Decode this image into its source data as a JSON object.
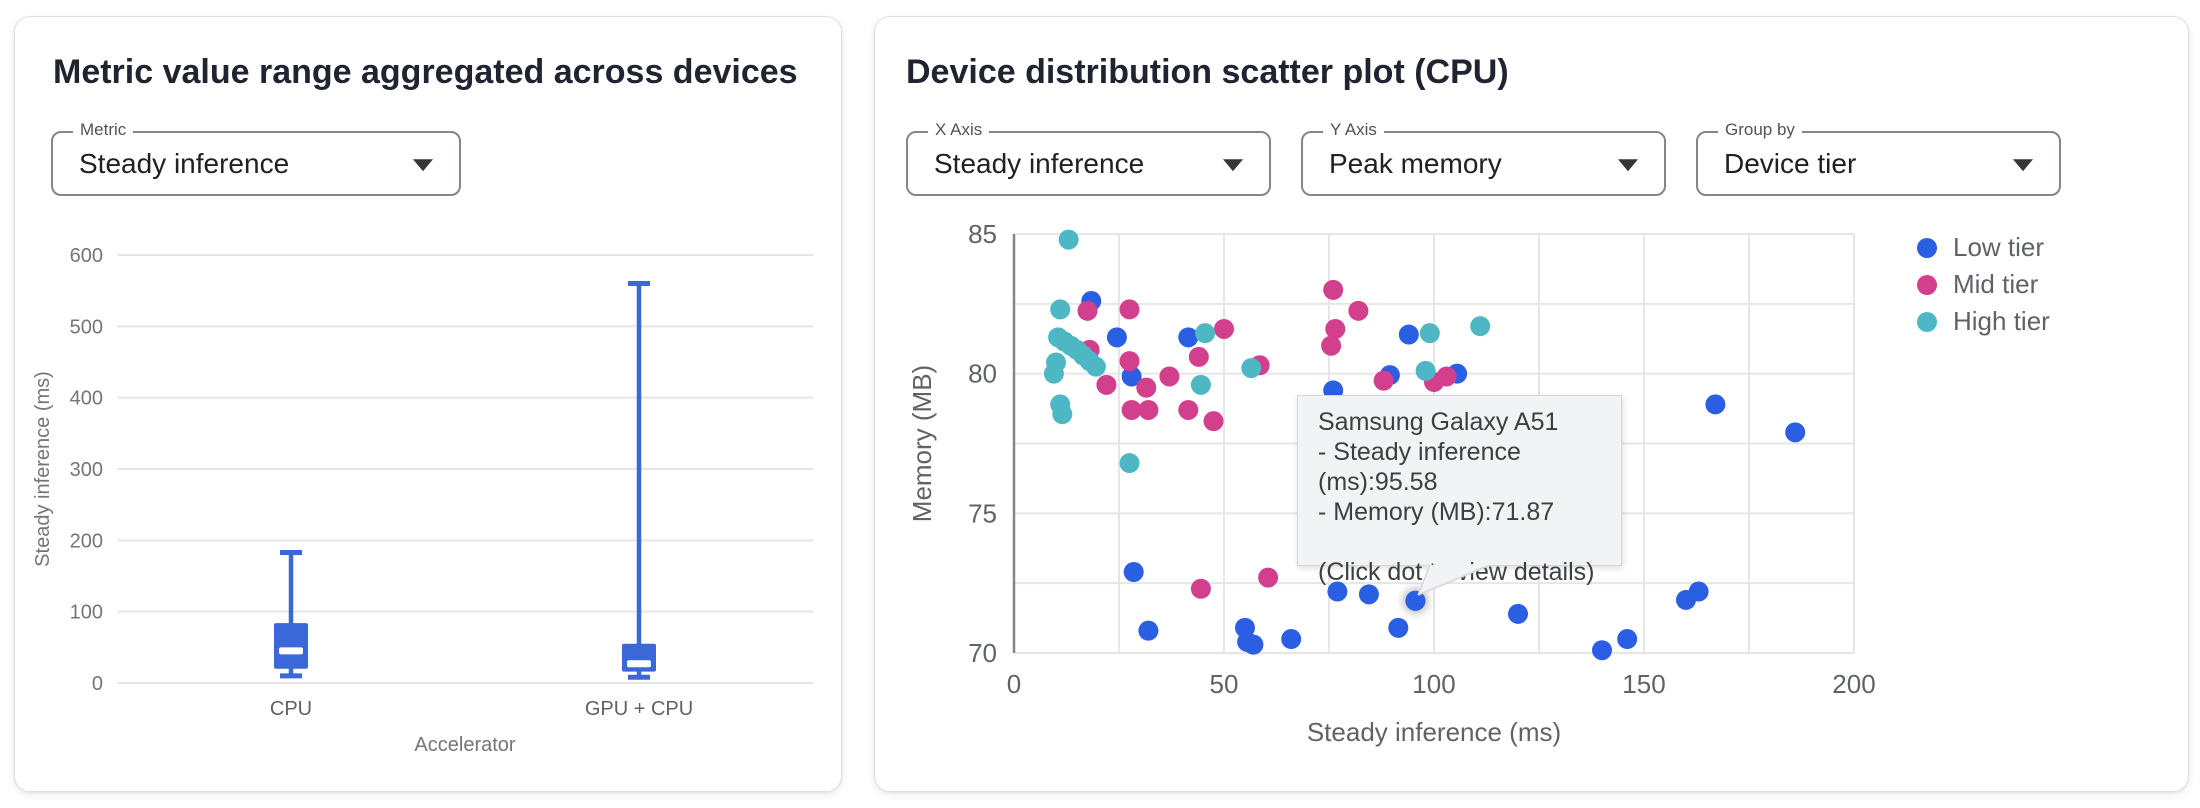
{
  "left_panel": {
    "title": "Metric value range aggregated across devices",
    "metric_select": {
      "label": "Metric",
      "value": "Steady inference"
    }
  },
  "right_panel": {
    "title": "Device distribution scatter plot (CPU)",
    "x_axis_select": {
      "label": "X Axis",
      "value": "Steady inference"
    },
    "y_axis_select": {
      "label": "Y Axis",
      "value": "Peak memory"
    },
    "group_by_select": {
      "label": "Group by",
      "value": "Device tier"
    },
    "tooltip": {
      "device": "Samsung Galaxy A51",
      "line1": "- Steady inference (ms):95.58",
      "line2": "- Memory (MB):71.87",
      "hint": "(Click dot to view details)"
    }
  },
  "colors": {
    "box_blue": "#3a68d8",
    "low_tier": "#2b5fe3",
    "mid_tier": "#d23f8d",
    "high_tier": "#4eb7c4",
    "gridline": "#e6e6e6",
    "axis_line": "#80868b",
    "tick_text": "#5f6368",
    "tick_text_small": "#757575"
  },
  "chart_data": [
    {
      "type": "box",
      "title": "Metric value range aggregated across devices",
      "categories": [
        "CPU",
        "GPU + CPU"
      ],
      "values": [
        {
          "min": 10,
          "q1": 20,
          "median": 45,
          "q3": 84,
          "max": 183
        },
        {
          "min": 8,
          "q1": 16,
          "median": 27,
          "q3": 55,
          "max": 560
        }
      ],
      "xlabel": "Accelerator",
      "ylabel": "Steady inference (ms)",
      "ylim": [
        0,
        600
      ],
      "yticks": [
        0,
        100,
        200,
        300,
        400,
        500,
        600
      ],
      "grid": "horizontal-only",
      "color": "#3a68d8"
    },
    {
      "type": "scatter",
      "title": "Device distribution scatter plot (CPU)",
      "xlabel": "Steady inference (ms)",
      "ylabel": "Memory (MB)",
      "xlim": [
        0,
        200
      ],
      "ylim": [
        70,
        85
      ],
      "xticks": [
        0,
        50,
        100,
        150,
        200
      ],
      "yticks": [
        70,
        75,
        80,
        85
      ],
      "x_minor_step": 25,
      "y_minor_step": 2.5,
      "legend_position": "right-top",
      "series": [
        {
          "name": "Low tier",
          "color": "#2b5fe3",
          "points": [
            [
              18.4,
              82.6
            ],
            [
              24.5,
              81.3
            ],
            [
              41.5,
              81.3
            ],
            [
              28,
              79.9
            ],
            [
              76,
              79.4
            ],
            [
              89.5,
              79.95
            ],
            [
              94,
              81.4
            ],
            [
              105.5,
              80.0
            ],
            [
              28.5,
              72.9
            ],
            [
              32,
              70.8
            ],
            [
              55,
              70.9
            ],
            [
              55.5,
              70.4
            ],
            [
              57,
              70.3
            ],
            [
              66,
              70.5
            ],
            [
              77,
              72.2
            ],
            [
              84.5,
              72.1
            ],
            [
              91.5,
              70.9
            ],
            [
              95.58,
              71.87
            ],
            [
              120,
              71.4
            ],
            [
              140,
              70.1
            ],
            [
              146,
              70.5
            ],
            [
              160,
              71.9
            ],
            [
              163,
              72.2
            ],
            [
              167,
              78.9
            ],
            [
              186,
              77.9
            ]
          ]
        },
        {
          "name": "Mid tier",
          "color": "#d23f8d",
          "points": [
            [
              17.5,
              82.25
            ],
            [
              27.5,
              82.3
            ],
            [
              18,
              80.85
            ],
            [
              27.5,
              80.45
            ],
            [
              22,
              79.6
            ],
            [
              31.5,
              79.5
            ],
            [
              37,
              79.9
            ],
            [
              28,
              78.7
            ],
            [
              32,
              78.7
            ],
            [
              41.5,
              78.7
            ],
            [
              47.5,
              78.3
            ],
            [
              44,
              80.6
            ],
            [
              50,
              81.6
            ],
            [
              58.5,
              80.3
            ],
            [
              76,
              83.0
            ],
            [
              82,
              82.25
            ],
            [
              76.5,
              81.6
            ],
            [
              75.5,
              81.0
            ],
            [
              88,
              79.75
            ],
            [
              100,
              79.7
            ],
            [
              103,
              79.9
            ],
            [
              44.5,
              72.3
            ],
            [
              60.5,
              72.7
            ]
          ]
        },
        {
          "name": "High tier",
          "color": "#4eb7c4",
          "points": [
            [
              13,
              84.8
            ],
            [
              11,
              82.3
            ],
            [
              10.5,
              81.3
            ],
            [
              12,
              81.15
            ],
            [
              13.5,
              81.0
            ],
            [
              15,
              80.85
            ],
            [
              16.5,
              80.65
            ],
            [
              18,
              80.45
            ],
            [
              19.5,
              80.25
            ],
            [
              10,
              80.4
            ],
            [
              9.5,
              80.0
            ],
            [
              11,
              78.9
            ],
            [
              11.5,
              78.55
            ],
            [
              45.5,
              81.45
            ],
            [
              44.5,
              79.6
            ],
            [
              56.5,
              80.2
            ],
            [
              27.5,
              76.8
            ],
            [
              98,
              80.1
            ],
            [
              99,
              81.45
            ],
            [
              111,
              81.7
            ]
          ]
        }
      ],
      "highlight": {
        "series": "Low tier",
        "x": 95.58,
        "y": 71.87,
        "label": "Samsung Galaxy A51"
      }
    }
  ]
}
